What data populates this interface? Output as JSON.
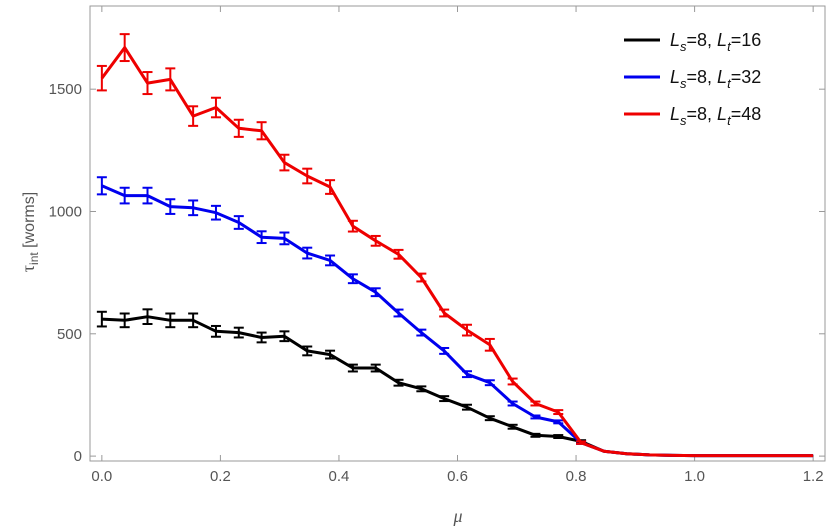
{
  "chart_data": {
    "type": "line",
    "xlabel": "μ",
    "ylabel_main": "τ",
    "ylabel_sub": "int",
    "ylabel_rest": " [worms]",
    "xlim": [
      -0.02,
      1.22
    ],
    "ylim": [
      -20,
      1840
    ],
    "xticks": [
      0.0,
      0.2,
      0.4,
      0.6,
      0.8,
      1.0,
      1.2
    ],
    "xtick_labels": [
      "0.0",
      "0.2",
      "0.4",
      "0.6",
      "0.8",
      "1.0",
      "1.2"
    ],
    "yticks": [
      0,
      500,
      1000,
      1500
    ],
    "ytick_labels": [
      "0",
      "500",
      "1000",
      "1500"
    ],
    "grid": false,
    "legend_position": "top-right",
    "x": [
      0.0,
      0.0385,
      0.077,
      0.1155,
      0.154,
      0.1925,
      0.231,
      0.2695,
      0.308,
      0.3465,
      0.385,
      0.4235,
      0.462,
      0.5005,
      0.539,
      0.5775,
      0.616,
      0.6545,
      0.693,
      0.7315,
      0.77,
      0.8085,
      0.847,
      0.8855,
      0.924,
      0.9625,
      1.001,
      1.0395,
      1.078,
      1.1165,
      1.155,
      1.1935,
      1.2
    ],
    "series": [
      {
        "name_main": "L",
        "name_sub1": "s",
        "name_mid": "=8, ",
        "name_main2": "L",
        "name_sub2": "t",
        "name_end": "=16",
        "color": "#000000",
        "values": [
          560,
          555,
          570,
          555,
          555,
          510,
          505,
          485,
          490,
          430,
          415,
          360,
          360,
          300,
          275,
          235,
          200,
          155,
          120,
          85,
          80,
          60,
          20,
          10,
          5,
          3,
          2,
          2,
          2,
          2,
          2,
          2,
          2
        ],
        "errors": [
          30,
          28,
          30,
          28,
          28,
          22,
          20,
          20,
          20,
          18,
          16,
          14,
          14,
          12,
          10,
          10,
          10,
          8,
          8,
          6,
          6,
          5,
          3,
          2,
          1,
          1,
          1,
          1,
          1,
          1,
          1,
          1,
          1
        ]
      },
      {
        "name_main": "L",
        "name_sub1": "s",
        "name_mid": "=8, ",
        "name_main2": "L",
        "name_sub2": "t",
        "name_end": "=32",
        "color": "#0000ee",
        "values": [
          1105,
          1065,
          1065,
          1020,
          1015,
          995,
          955,
          895,
          890,
          830,
          800,
          725,
          670,
          585,
          505,
          430,
          335,
          300,
          215,
          160,
          140,
          55,
          20,
          10,
          5,
          3,
          2,
          2,
          2,
          2,
          2,
          2,
          2
        ],
        "errors": [
          35,
          32,
          32,
          30,
          30,
          28,
          26,
          24,
          24,
          22,
          20,
          18,
          16,
          14,
          12,
          12,
          12,
          10,
          8,
          6,
          6,
          5,
          3,
          2,
          1,
          1,
          1,
          1,
          1,
          1,
          1,
          1,
          1
        ]
      },
      {
        "name_main": "L",
        "name_sub1": "s",
        "name_mid": "=8, ",
        "name_main2": "L",
        "name_sub2": "t",
        "name_end": "=48",
        "color": "#ee0000",
        "values": [
          1545,
          1670,
          1525,
          1540,
          1390,
          1425,
          1340,
          1330,
          1200,
          1145,
          1100,
          940,
          880,
          825,
          730,
          585,
          515,
          455,
          305,
          215,
          180,
          55,
          20,
          10,
          5,
          3,
          2,
          2,
          2,
          2,
          2,
          2,
          2
        ],
        "errors": [
          50,
          55,
          45,
          45,
          40,
          40,
          35,
          35,
          32,
          30,
          28,
          22,
          20,
          18,
          16,
          14,
          22,
          24,
          12,
          8,
          8,
          5,
          3,
          2,
          1,
          1,
          1,
          1,
          1,
          1,
          1,
          1,
          1
        ]
      }
    ]
  }
}
